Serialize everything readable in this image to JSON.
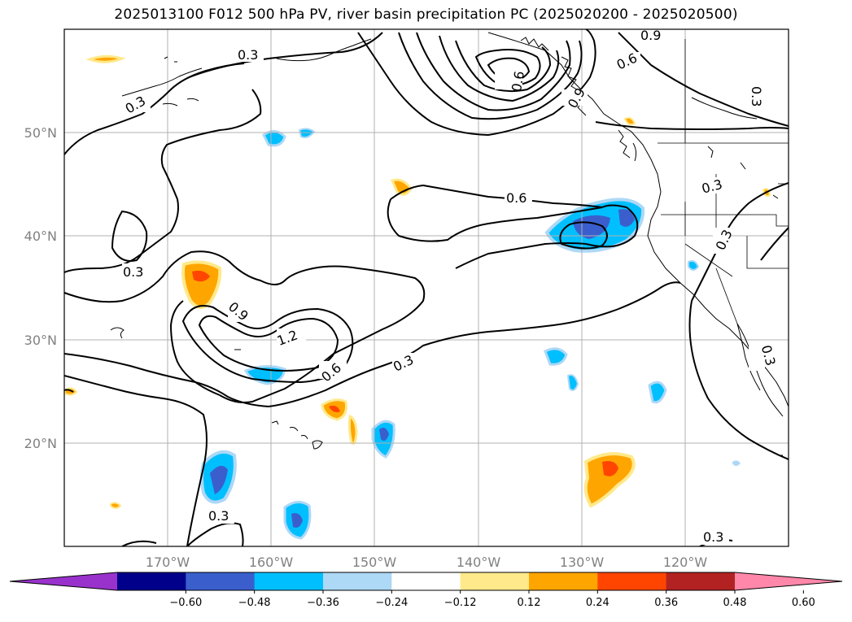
{
  "title": "2025013100 F012 500 hPa PV, river basin precipitation PC (2025020200 - 2025020500)",
  "map": {
    "lat_labels": [
      "50°N",
      "40°N",
      "30°N",
      "20°N"
    ],
    "lon_labels": [
      "170°W",
      "160°W",
      "150°W",
      "140°W",
      "130°W",
      "120°W"
    ]
  },
  "contour_labels": [
    "0.3",
    "0.3",
    "0.3",
    "0.9",
    "0.6",
    "0.3",
    "0.6",
    "0.3",
    "0.6",
    "0.9",
    "0.3",
    "1.2",
    "0.9",
    "0.6",
    "0.3",
    "0.3",
    "0.3",
    "0.3"
  ],
  "colorbar": {
    "ticks": [
      "−0.60",
      "−0.48",
      "−0.36",
      "−0.24",
      "−0.12",
      "0.12",
      "0.24",
      "0.36",
      "0.48",
      "0.60"
    ],
    "colors": [
      "#9932cc",
      "#00008b",
      "#3a5fcd",
      "#00bfff",
      "#add8f6",
      "#ffffff",
      "#ffe98a",
      "#ffa500",
      "#ff4500",
      "#b22222",
      "#ff88aa"
    ]
  }
}
